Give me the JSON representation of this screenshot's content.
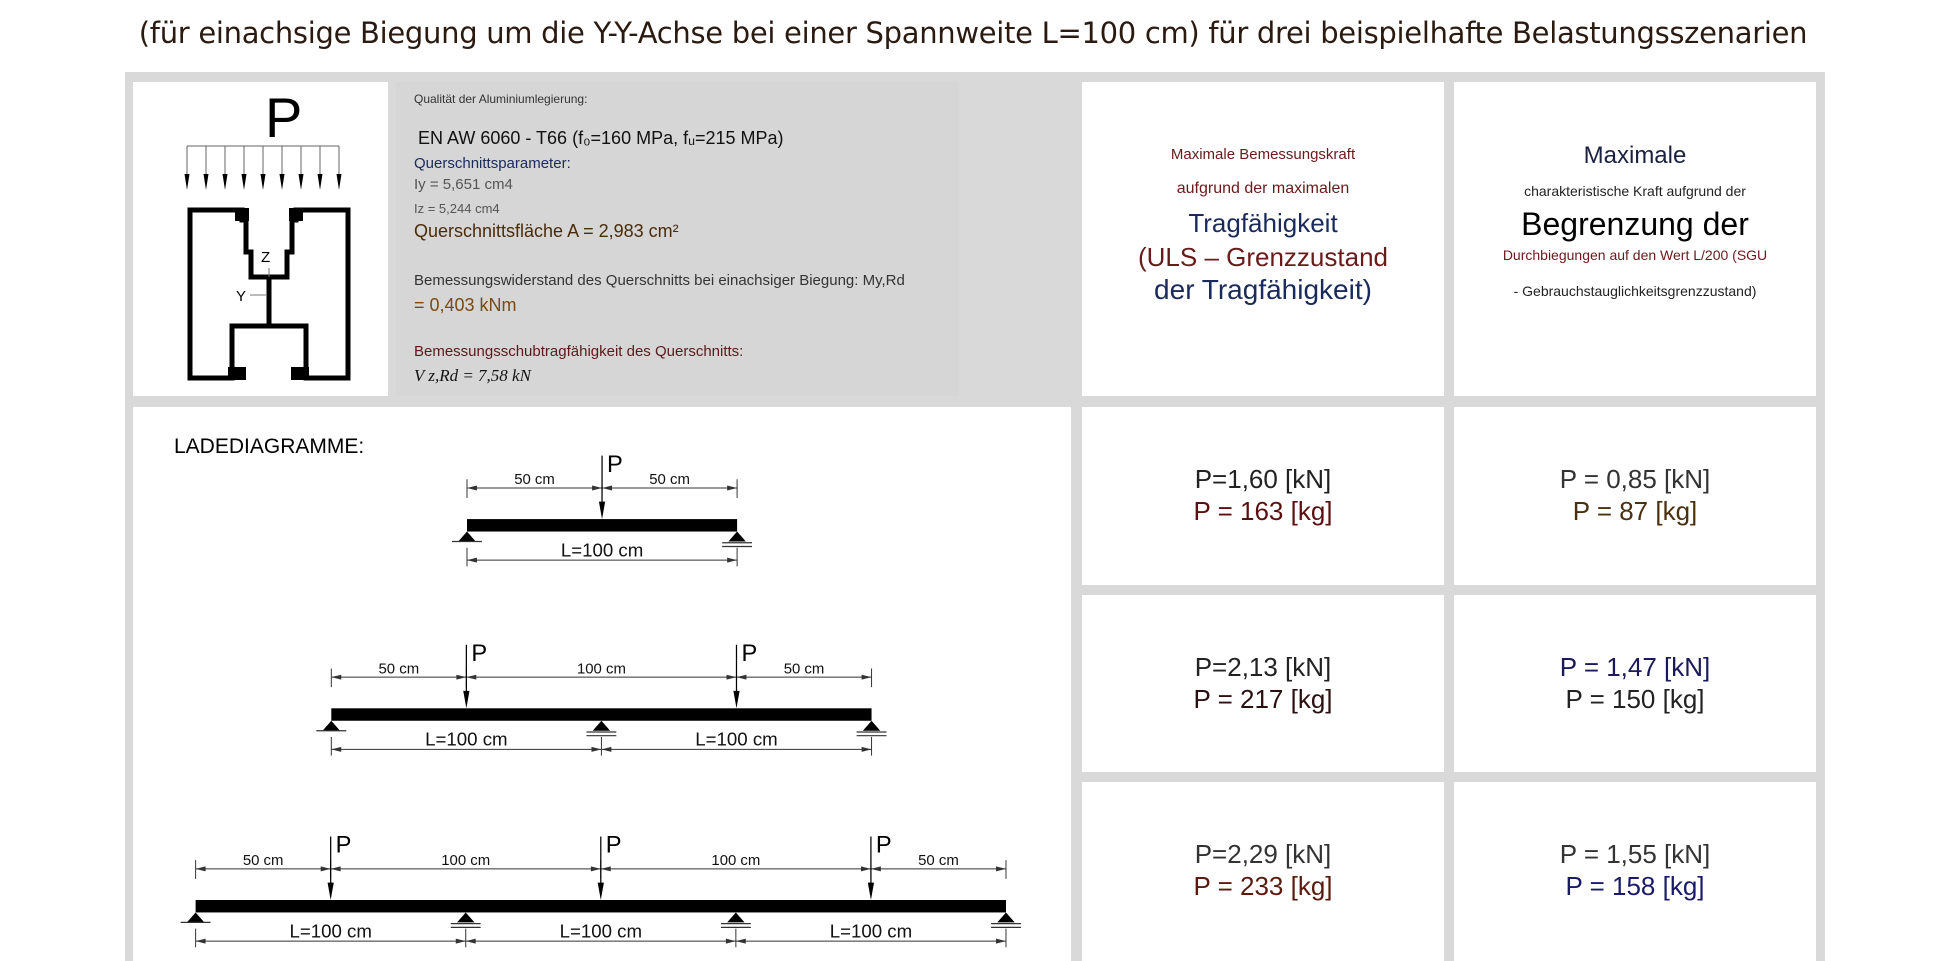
{
  "title": "(für einachsige Biegung um die Y-Y-Achse bei einer Spannweite L=100 cm) für drei beispielhafte Belastungsszenarien",
  "section": {
    "load_label": "P",
    "z_label": "Z",
    "y_label": "Y"
  },
  "properties": {
    "alloy_label": "Qualität der Aluminiumlegierung:",
    "alloy_value": "EN AW 6060 - T66 (f₀=160 MPa, fᵤ=215 MPa)",
    "params_label": "Querschnittsparameter:",
    "iy": "Iy = 5,651 cm4",
    "iz": "Iz = 5,244 cm4",
    "area": "Querschnittsfläche A = 2,983 cm²",
    "moment_label": "Bemessungswiderstand des Querschnitts bei einachsiger Biegung: My,Rd",
    "moment_value": "= 0,403 kNm",
    "shear_label": "Bemessungsschubtragfähigkeit des Querschnitts:",
    "shear_value": "V z,Rd = 7,58 kN"
  },
  "headers": {
    "uls": [
      "Maximale Bemessungskraft",
      "aufgrund der maximalen",
      "Tragfähigkeit",
      "(ULS – Grenzzustand",
      "der Tragfähigkeit)"
    ],
    "sgu": [
      "Maximale",
      "charakteristische Kraft aufgrund der",
      "Begrenzung der",
      "Durchbiegungen auf den Wert L/200 (SGU",
      "- Gebrauchstauglichkeitsgrenzzustand)"
    ]
  },
  "diagrams": {
    "heading": "LADEDIAGRAMME:",
    "scenarios": [
      {
        "load_label": "P",
        "top_dims": [
          "50 cm",
          "50 cm"
        ],
        "bottom_dims": [
          "L=100 cm"
        ]
      },
      {
        "load_label": "P",
        "top_dims": [
          "50 cm",
          "100 cm",
          "50 cm"
        ],
        "bottom_dims": [
          "L=100 cm",
          "L=100 cm"
        ]
      },
      {
        "load_label": "P",
        "top_dims": [
          "50 cm",
          "100 cm",
          "100 cm",
          "50 cm"
        ],
        "bottom_dims": [
          "L=100 cm",
          "L=100 cm",
          "L=100 cm"
        ]
      }
    ]
  },
  "results": [
    {
      "uls": [
        "P=1,60 [kN]",
        "P = 163 [kg]"
      ],
      "sgu": [
        "P = 0,85 [kN]",
        "P = 87 [kg]"
      ]
    },
    {
      "uls": [
        "P=2,13 [kN]",
        "P = 217 [kg]"
      ],
      "sgu": [
        "P = 1,47 [kN]",
        "P = 150 [kg]"
      ]
    },
    {
      "uls": [
        "P=2,29 [kN]",
        "P = 233 [kg]"
      ],
      "sgu": [
        "P = 1,55 [kN]",
        "P = 158 [kg]"
      ]
    }
  ],
  "colors": {
    "frame": "#d9d9d9",
    "navy": "#1a2a5a",
    "maroon": "#6a1a1a",
    "brown": "#5a3a10"
  }
}
